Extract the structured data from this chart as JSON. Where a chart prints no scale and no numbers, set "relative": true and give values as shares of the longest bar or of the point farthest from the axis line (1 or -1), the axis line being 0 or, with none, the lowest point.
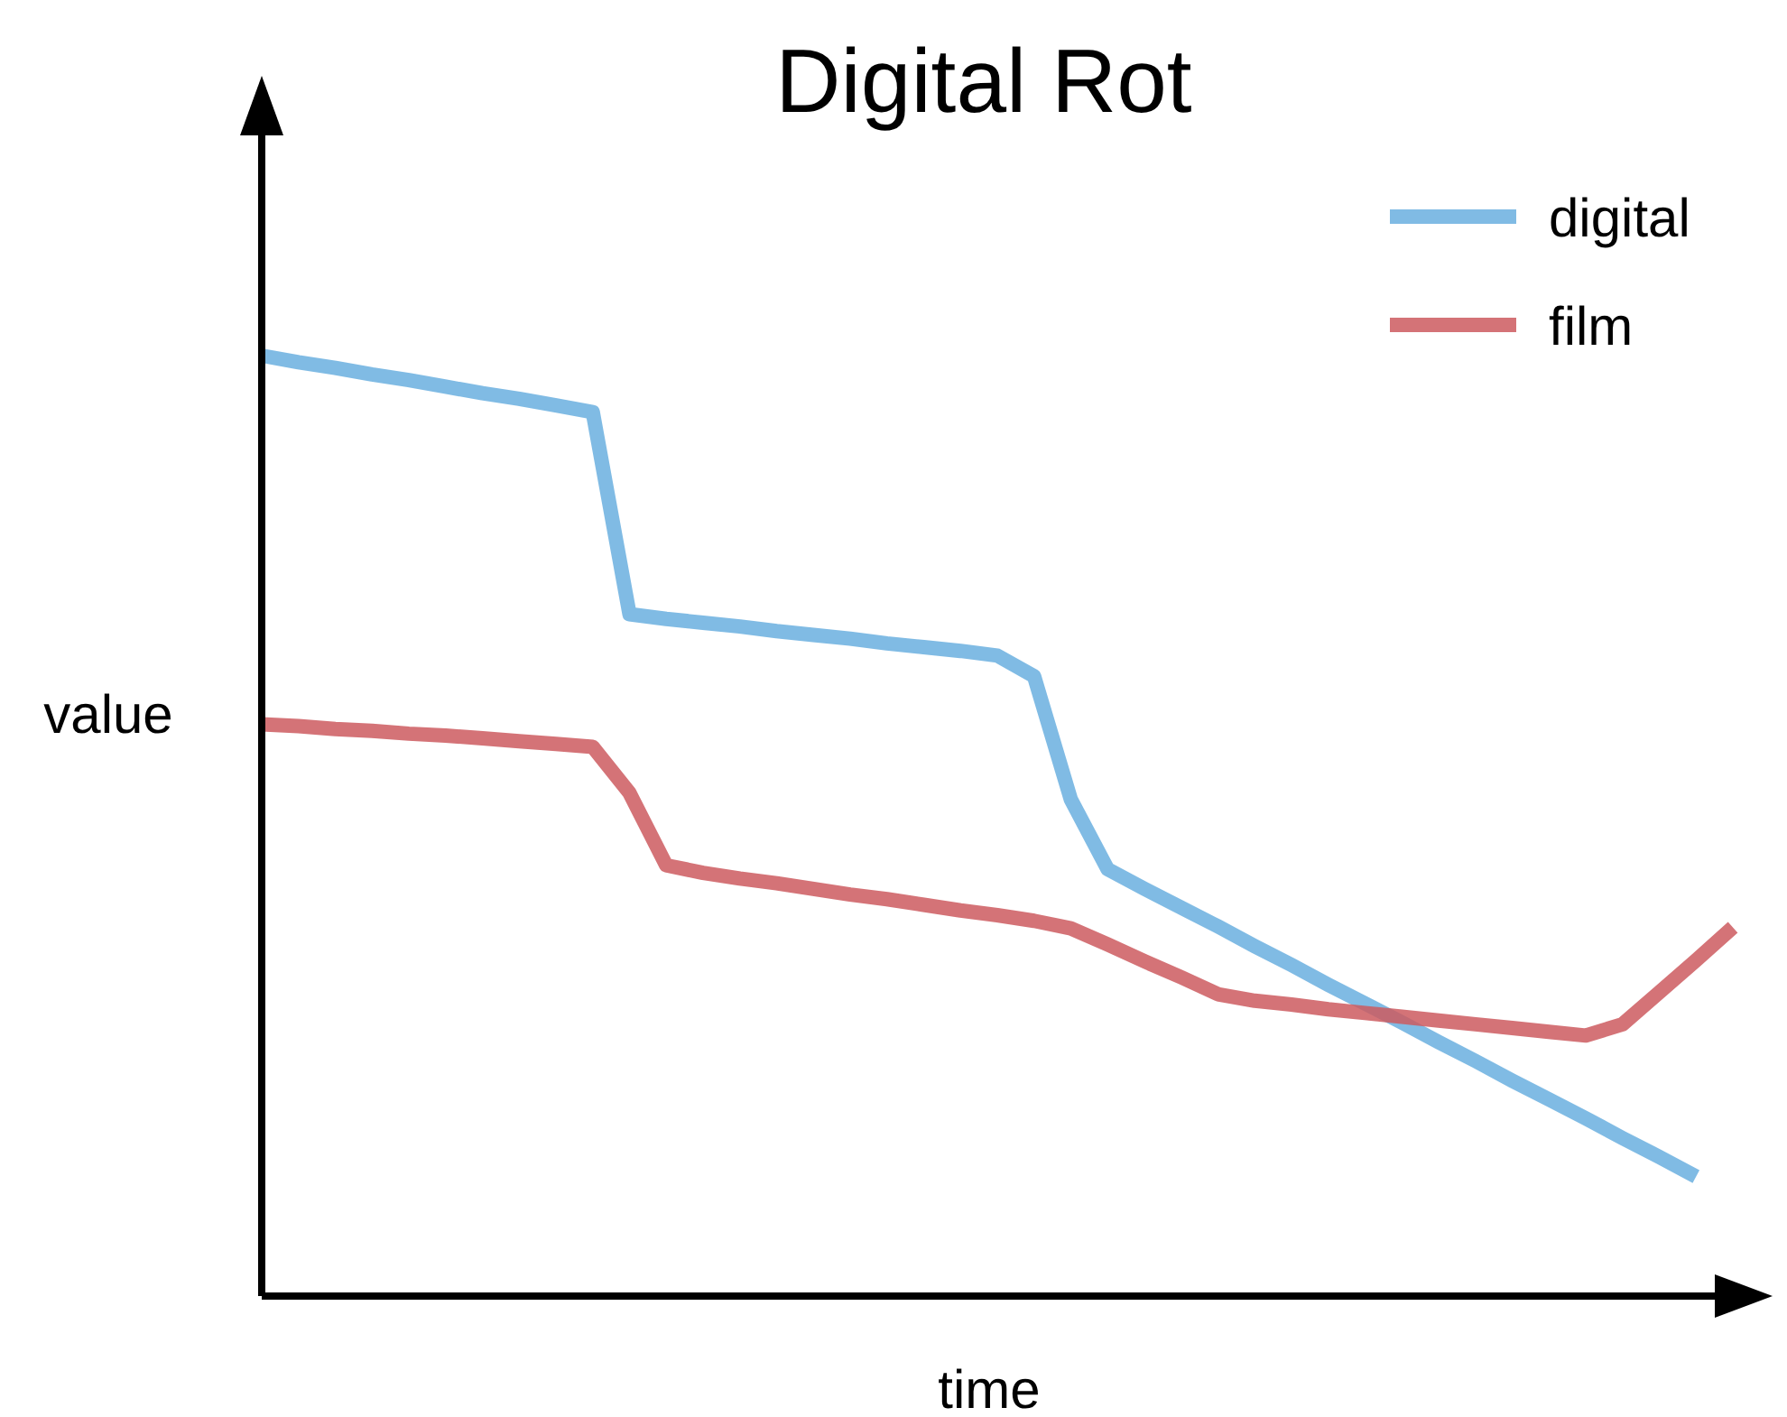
{
  "chart_data": {
    "type": "line",
    "title": "Digital Rot",
    "xlabel": "time",
    "ylabel": "value",
    "relative": true,
    "legend": "top right",
    "grid": false,
    "categories": [
      null,
      null,
      null,
      null,
      null,
      null,
      null,
      null,
      null,
      null,
      null,
      null,
      null,
      null,
      null,
      null,
      null,
      null,
      null,
      null,
      null,
      null,
      null,
      null,
      null,
      null,
      null,
      null,
      null,
      null,
      null,
      null,
      null,
      null,
      null,
      null,
      null,
      null,
      null,
      null,
      null
    ],
    "series": [
      {
        "name": "digital",
        "color": "#6aafdf",
        "values": [
          1.0,
          0.993,
          0.987,
          0.98,
          0.974,
          0.967,
          0.96,
          0.954,
          0.947,
          0.94,
          0.725,
          0.72,
          0.716,
          0.712,
          0.707,
          0.703,
          0.699,
          0.694,
          0.69,
          0.686,
          0.681,
          0.659,
          0.528,
          0.454,
          0.433,
          0.413,
          0.393,
          0.372,
          0.352,
          0.331,
          0.311,
          0.291,
          0.27,
          0.25,
          0.229,
          0.209,
          0.189,
          0.168,
          0.148,
          0.127,
          null
        ]
      },
      {
        "name": "film",
        "color": "#cc5a5f",
        "values": [
          0.608,
          0.606,
          0.603,
          0.601,
          0.598,
          0.596,
          0.593,
          0.59,
          0.587,
          0.584,
          0.535,
          0.458,
          0.45,
          0.444,
          0.439,
          0.433,
          0.427,
          0.422,
          0.416,
          0.41,
          0.405,
          0.399,
          0.391,
          0.374,
          0.356,
          0.339,
          0.321,
          0.314,
          0.31,
          0.305,
          0.301,
          0.297,
          0.293,
          0.289,
          0.285,
          0.281,
          0.277,
          0.289,
          0.323,
          0.357,
          0.392
        ]
      }
    ]
  }
}
